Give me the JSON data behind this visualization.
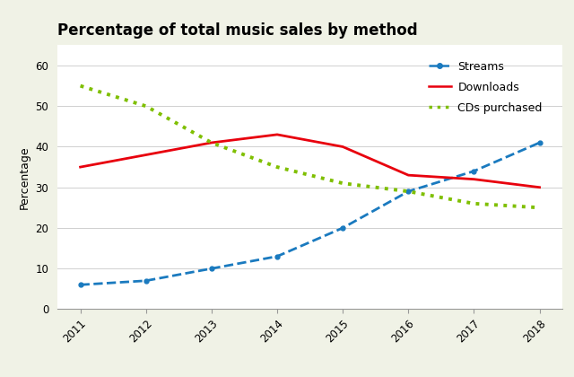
{
  "title": "Percentage of total music sales by method",
  "ylabel": "Percentage",
  "years": [
    2011,
    2012,
    2013,
    2014,
    2015,
    2016,
    2017,
    2018
  ],
  "streams": [
    6,
    7,
    10,
    13,
    20,
    29,
    34,
    41
  ],
  "downloads": [
    35,
    38,
    41,
    43,
    40,
    33,
    32,
    30
  ],
  "cds": [
    55,
    50,
    41,
    35,
    31,
    29,
    26,
    25
  ],
  "streams_color": "#1a7abf",
  "downloads_color": "#e8000d",
  "cds_color": "#7fbf00",
  "background_color": "#f0f2e6",
  "plot_background": "#ffffff",
  "ylim": [
    0,
    65
  ],
  "yticks": [
    0,
    10,
    20,
    30,
    40,
    50,
    60
  ],
  "legend_labels": [
    "Streams",
    "Downloads",
    "CDs purchased"
  ],
  "title_fontsize": 12,
  "axis_fontsize": 9,
  "tick_fontsize": 8.5
}
